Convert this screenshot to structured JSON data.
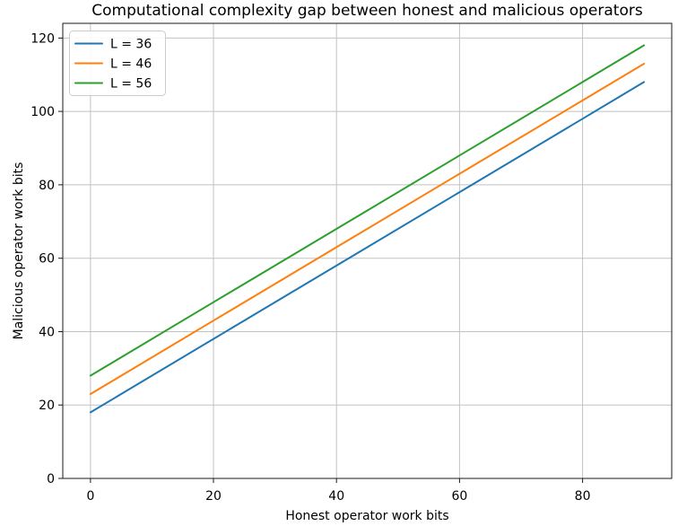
{
  "chart_data": {
    "type": "line",
    "title": "Computational complexity gap between honest and malicious operators",
    "xlabel": "Honest operator work bits",
    "ylabel": "Malicious operator work bits",
    "xlim": [
      -4.5,
      94.5
    ],
    "ylim": [
      0,
      124
    ],
    "xticks": [
      0,
      20,
      40,
      60,
      80
    ],
    "yticks": [
      0,
      20,
      40,
      60,
      80,
      100,
      120
    ],
    "grid": true,
    "legend": {
      "position": "upper-left"
    },
    "x": [
      0,
      20,
      40,
      60,
      80,
      90
    ],
    "series": [
      {
        "name": "L = 36",
        "color": "#1f77b4",
        "values": [
          18,
          38,
          58,
          78,
          98,
          108
        ]
      },
      {
        "name": "L = 46",
        "color": "#ff7f0e",
        "values": [
          23,
          43,
          63,
          83,
          103,
          113
        ]
      },
      {
        "name": "L = 56",
        "color": "#2ca02c",
        "values": [
          28,
          48,
          68,
          88,
          108,
          118
        ]
      }
    ]
  },
  "colors": {
    "background": "#ffffff",
    "grid": "#c2c2c2",
    "spine": "#1a1a1a",
    "tick": "#1a1a1a",
    "text": "#000000",
    "legend_border": "#cccccc",
    "legend_fill": "#ffffff"
  }
}
